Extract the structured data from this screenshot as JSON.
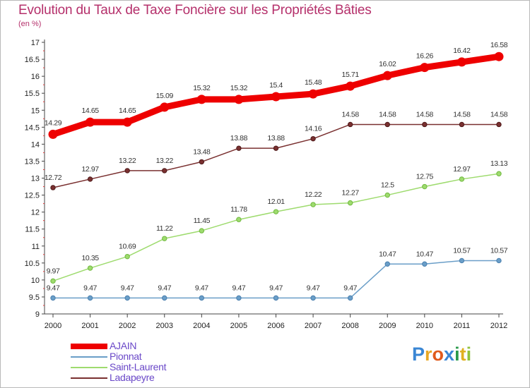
{
  "title": "Evolution du Taux de Taxe Foncière sur les Propriétés Bâties",
  "unit": "(en %)",
  "logo": {
    "text": "Proxiti",
    "letter_colors": [
      "#3a86d4",
      "#e8a825",
      "#e05a1c",
      "#3a86d4",
      "#2a9a4a",
      "#e0b020",
      "#8fc23c"
    ]
  },
  "chart_data": {
    "type": "line",
    "x": [
      "2000",
      "2001",
      "2002",
      "2003",
      "2004",
      "2005",
      "2006",
      "2007",
      "2008",
      "2009",
      "2010",
      "2011",
      "2012"
    ],
    "ylim": [
      9,
      17
    ],
    "yticks": [
      "9",
      "9.5",
      "10",
      "10.5",
      "11",
      "11.5",
      "12",
      "12.5",
      "13",
      "13.5",
      "14",
      "14.5",
      "15",
      "15.5",
      "16",
      "16.5",
      "17"
    ],
    "grid": false,
    "legend_position": "bottom-left",
    "series": [
      {
        "name": "AJAIN",
        "color": "#ee0000",
        "values": [
          14.29,
          14.65,
          14.65,
          15.09,
          15.32,
          15.32,
          15.4,
          15.48,
          15.71,
          16.02,
          16.26,
          16.42,
          16.58
        ],
        "labels": [
          "14.29",
          "14.65",
          "14.65",
          "15.09",
          "15.32",
          "15.32",
          "15.4",
          "15.48",
          "15.71",
          "16.02",
          "16.26",
          "16.42",
          "16.58"
        ]
      },
      {
        "name": "Pionnat",
        "color": "#6a9ec8",
        "values": [
          9.47,
          9.47,
          9.47,
          9.47,
          9.47,
          9.47,
          9.47,
          9.47,
          9.47,
          10.47,
          10.47,
          10.57,
          10.57
        ],
        "labels": [
          "9.47",
          "9.47",
          "9.47",
          "9.47",
          "9.47",
          "9.47",
          "9.47",
          "9.47",
          "9.47",
          "10.47",
          "10.47",
          "10.57",
          "10.57"
        ]
      },
      {
        "name": "Saint-Laurent",
        "color": "#9edb6e",
        "values": [
          9.97,
          10.35,
          10.69,
          11.22,
          11.45,
          11.78,
          12.01,
          12.22,
          12.27,
          12.5,
          12.75,
          12.97,
          13.13
        ],
        "labels": [
          "9.97",
          "10.35",
          "10.69",
          "11.22",
          "11.45",
          "11.78",
          "12.01",
          "12.22",
          "12.27",
          "12.5",
          "12.75",
          "12.97",
          "13.13"
        ]
      },
      {
        "name": "Ladapeyre",
        "color": "#7a3030",
        "values": [
          12.72,
          12.97,
          13.22,
          13.22,
          13.48,
          13.88,
          13.88,
          14.16,
          14.58,
          14.58,
          14.58,
          14.58,
          14.58
        ],
        "labels": [
          "12.72",
          "12.97",
          "13.22",
          "13.22",
          "13.48",
          "13.88",
          "13.88",
          "14.16",
          "14.58",
          "14.58",
          "14.58",
          "14.58",
          "14.58"
        ]
      }
    ]
  }
}
